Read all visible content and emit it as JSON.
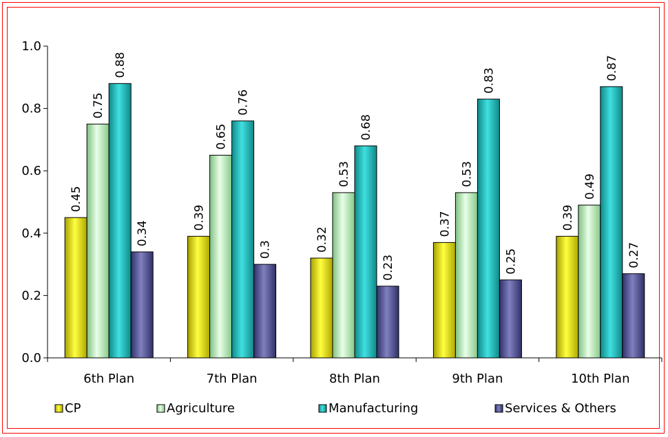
{
  "chart_data": {
    "type": "bar",
    "categories": [
      "6th Plan",
      "7th Plan",
      "8th Plan",
      "9th Plan",
      "10th Plan"
    ],
    "series": [
      {
        "name": "CP",
        "values": [
          0.45,
          0.39,
          0.32,
          0.37,
          0.39
        ],
        "labels": [
          "0.45",
          "0.39",
          "0.32",
          "0.37",
          "0.39"
        ],
        "color": "#e8e000"
      },
      {
        "name": "Agriculture",
        "values": [
          0.75,
          0.65,
          0.53,
          0.53,
          0.49
        ],
        "labels": [
          "0.75",
          "0.65",
          "0.53",
          "0.53",
          "0.49"
        ],
        "color": "#b8f0b8"
      },
      {
        "name": "Manufacturing",
        "values": [
          0.88,
          0.76,
          0.68,
          0.83,
          0.87
        ],
        "labels": [
          "0.88",
          "0.76",
          "0.68",
          "0.83",
          "0.87"
        ],
        "color": "#20b8b8"
      },
      {
        "name": "Services & Others",
        "values": [
          0.34,
          0.3,
          0.23,
          0.25,
          0.27
        ],
        "labels": [
          "0.34",
          "0.3",
          "0.23",
          "0.25",
          "0.27"
        ],
        "color": "#5c5c9c"
      }
    ],
    "yticks": [
      "0.0",
      "0.2",
      "0.4",
      "0.6",
      "0.8",
      "1.0"
    ],
    "ylim": [
      0,
      1.0
    ],
    "grid": false,
    "legend_position": "bottom",
    "border_color": "#ff0000"
  }
}
